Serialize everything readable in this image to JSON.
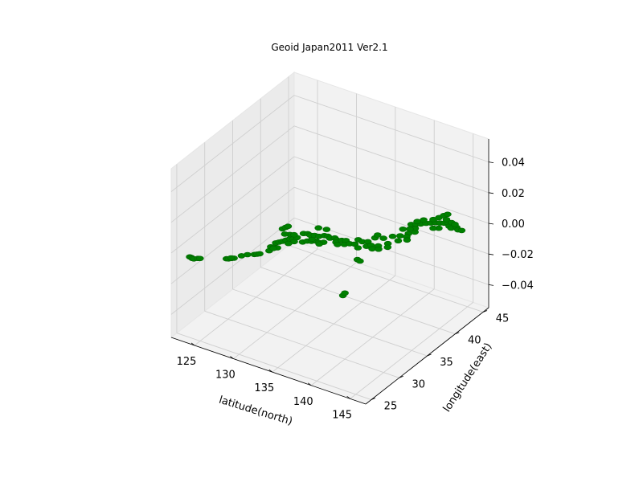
{
  "chart_data": {
    "type": "scatter",
    "projection": "3d",
    "title": "Geoid Japan2011 Ver2.1",
    "xlabel": "latitude(north)",
    "ylabel": "longitude(east)",
    "zlabel": "",
    "xlim": [
      122,
      147
    ],
    "ylim": [
      24,
      46
    ],
    "zlim": [
      -0.055,
      0.055
    ],
    "xticks": [
      "125",
      "130",
      "135",
      "140",
      "145"
    ],
    "yticks": [
      "25",
      "30",
      "35",
      "40",
      "45"
    ],
    "zticks": [
      "0.04",
      "0.02",
      "0.00",
      "−0.02",
      "−0.04"
    ],
    "xtick_values": [
      125,
      130,
      135,
      140,
      145
    ],
    "ytick_values": [
      25,
      30,
      35,
      40,
      45
    ],
    "ztick_values": [
      0.04,
      0.02,
      0.0,
      -0.02,
      -0.04
    ],
    "grid": true,
    "marker_color": "#008000",
    "series": [
      {
        "points": [
          [
            124.1,
            24.4
          ],
          [
            124.3,
            24.4
          ],
          [
            124.5,
            24.3
          ],
          [
            124.7,
            24.3
          ],
          [
            125.0,
            24.6
          ],
          [
            125.2,
            24.7
          ],
          [
            127.6,
            26.1
          ],
          [
            127.8,
            26.2
          ],
          [
            128.0,
            26.4
          ],
          [
            128.2,
            26.6
          ],
          [
            127.9,
            26.5
          ],
          [
            128.6,
            27.4
          ],
          [
            129.0,
            27.9
          ],
          [
            129.6,
            28.3
          ],
          [
            129.8,
            28.5
          ],
          [
            130.0,
            28.7
          ],
          [
            130.5,
            29.7
          ],
          [
            130.2,
            30.4
          ],
          [
            130.5,
            30.5
          ],
          [
            130.9,
            30.6
          ],
          [
            130.6,
            30.3
          ],
          [
            129.2,
            33.9
          ],
          [
            129.3,
            34.3
          ],
          [
            129.4,
            34.6
          ],
          [
            130.2,
            31.3
          ],
          [
            130.4,
            31.6
          ],
          [
            130.6,
            31.9
          ],
          [
            130.8,
            32.3
          ],
          [
            131.0,
            32.7
          ],
          [
            131.3,
            32.9
          ],
          [
            131.5,
            33.3
          ],
          [
            130.5,
            33.4
          ],
          [
            130.9,
            33.6
          ],
          [
            131.7,
            32.5
          ],
          [
            131.4,
            31.9
          ],
          [
            130.0,
            33.2
          ],
          [
            132.5,
            32.9
          ],
          [
            132.8,
            33.3
          ],
          [
            133.2,
            33.5
          ],
          [
            133.6,
            33.8
          ],
          [
            134.0,
            33.7
          ],
          [
            134.4,
            34.0
          ],
          [
            134.2,
            33.5
          ],
          [
            133.0,
            33.9
          ],
          [
            131.6,
            34.3
          ],
          [
            132.0,
            34.5
          ],
          [
            132.4,
            34.4
          ],
          [
            132.8,
            34.6
          ],
          [
            133.3,
            34.7
          ],
          [
            133.7,
            35.1
          ],
          [
            134.1,
            35.2
          ],
          [
            134.5,
            35.0
          ],
          [
            134.9,
            35.3
          ],
          [
            135.3,
            35.1
          ],
          [
            135.5,
            34.7
          ],
          [
            135.8,
            35.3
          ],
          [
            135.9,
            34.4
          ],
          [
            136.2,
            35.5
          ],
          [
            136.5,
            34.8
          ],
          [
            136.9,
            35.2
          ],
          [
            137.2,
            36.3
          ],
          [
            137.4,
            35.4
          ],
          [
            137.8,
            36.2
          ],
          [
            138.1,
            35.0
          ],
          [
            138.3,
            36.5
          ],
          [
            138.5,
            37.5
          ],
          [
            138.7,
            35.7
          ],
          [
            139.0,
            36.1
          ],
          [
            139.3,
            37.9
          ],
          [
            139.5,
            35.6
          ],
          [
            139.7,
            36.4
          ],
          [
            139.9,
            38.7
          ],
          [
            140.1,
            35.9
          ],
          [
            140.3,
            37.3
          ],
          [
            140.5,
            39.2
          ],
          [
            140.7,
            36.7
          ],
          [
            140.9,
            38.3
          ],
          [
            141.0,
            40.0
          ],
          [
            141.2,
            39.4
          ],
          [
            141.4,
            40.6
          ],
          [
            141.6,
            38.9
          ],
          [
            141.0,
            41.2
          ],
          [
            140.6,
            40.8
          ],
          [
            132.3,
            36.0
          ],
          [
            133.2,
            36.2
          ],
          [
            138.4,
            38.1
          ],
          [
            139.4,
            33.1
          ],
          [
            139.8,
            33.0
          ],
          [
            142.2,
            26.6
          ],
          [
            142.1,
            27.1
          ],
          [
            140.0,
            40.4
          ],
          [
            140.2,
            41.6
          ],
          [
            140.6,
            41.9
          ],
          [
            141.0,
            42.2
          ],
          [
            141.4,
            42.6
          ],
          [
            141.8,
            42.9
          ],
          [
            142.2,
            43.2
          ],
          [
            142.6,
            43.4
          ],
          [
            143.0,
            43.6
          ],
          [
            143.4,
            43.8
          ],
          [
            143.8,
            43.4
          ],
          [
            144.2,
            43.2
          ],
          [
            144.6,
            43.6
          ],
          [
            145.0,
            43.3
          ],
          [
            145.4,
            43.4
          ],
          [
            141.6,
            43.6
          ],
          [
            141.9,
            44.2
          ],
          [
            142.1,
            44.8
          ],
          [
            142.3,
            45.2
          ],
          [
            142.8,
            44.3
          ],
          [
            143.6,
            44.1
          ],
          [
            144.1,
            44.0
          ],
          [
            140.8,
            43.0
          ],
          [
            140.4,
            42.4
          ],
          [
            143.1,
            42.5
          ],
          [
            142.6,
            42.2
          ]
        ]
      }
    ]
  }
}
